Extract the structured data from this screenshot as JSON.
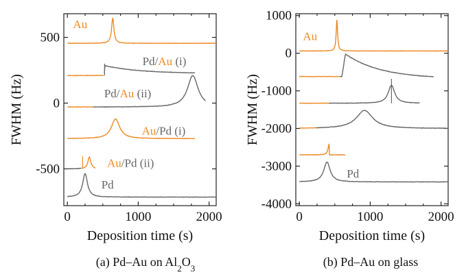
{
  "colors": {
    "orange": "#EE8A22",
    "gray": "#666666",
    "ink": "#111111"
  },
  "panels": [
    {
      "caption_parts": [
        "(a) Pd–Au on Al",
        "2",
        "O",
        "3"
      ],
      "chart_data": {
        "type": "line",
        "xlabel": "Deposition time (s)",
        "ylabel": "FWHM (Hz)",
        "xlim": [
          -50,
          2100
        ],
        "ylim": [
          -780,
          680
        ],
        "xticks": [
          0,
          1000,
          2000
        ],
        "yticks": [
          -500,
          0,
          500
        ],
        "grid": false,
        "series": [
          {
            "label": [
              {
                "text": "Au",
                "c": "orange"
              }
            ],
            "label_at": [
              80,
              570
            ],
            "color": "orange",
            "base": 455,
            "x": [
              0,
              2100
            ],
            "peaks": [
              {
                "c": 640,
                "h": 190,
                "w": 20
              }
            ]
          },
          {
            "label": [
              {
                "text": "Pd/",
                "c": "gray"
              },
              {
                "text": "Au",
                "c": "orange"
              },
              {
                "text": " (i)",
                "c": "gray"
              }
            ],
            "label_at": [
              1060,
              290
            ],
            "color": "gray",
            "base": 210,
            "x": [
              0,
              1800
            ],
            "start_seg": "orange",
            "start_end": 520,
            "onset": 520,
            "jump": 75,
            "decay_to": 225,
            "spike": {
              "x": 525,
              "h": 90
            }
          },
          {
            "label": [
              {
                "text": "Pd/",
                "c": "gray"
              },
              {
                "text": "Au",
                "c": "orange"
              },
              {
                "text": " (ii)",
                "c": "gray"
              }
            ],
            "label_at": [
              520,
              45
            ],
            "color": "gray",
            "base": -30,
            "x": [
              0,
              1950
            ],
            "start_seg": "orange",
            "start_end": 360,
            "peaks": [
              {
                "c": 1770,
                "h": 240,
                "w": 90
              }
            ]
          },
          {
            "label": [
              {
                "text": "Au",
                "c": "orange"
              },
              {
                "text": "/Pd (i)",
                "c": "gray"
              }
            ],
            "label_at": [
              1050,
              -240
            ],
            "color": "orange",
            "base": -270,
            "x": [
              0,
              1800
            ],
            "peaks": [
              {
                "c": 680,
                "h": 150,
                "w": 70
              }
            ]
          },
          {
            "label": [
              {
                "text": "Au",
                "c": "orange"
              },
              {
                "text": "/Pd (ii)",
                "c": "gray"
              }
            ],
            "label_at": [
              560,
              -485
            ],
            "color": "orange",
            "base": -500,
            "x": [
              0,
              400
            ],
            "start_seg": "gray",
            "start_end": 200,
            "spike": {
              "x": 215,
              "h": 95
            },
            "peaks": [
              {
                "c": 310,
                "h": 90,
                "w": 25
              }
            ]
          },
          {
            "label": [
              {
                "text": "Pd",
                "c": "gray"
              }
            ],
            "label_at": [
              480,
              -650
            ],
            "color": "gray",
            "base": -715,
            "x": [
              0,
              2100
            ],
            "peaks": [
              {
                "c": 250,
                "h": 180,
                "w": 40
              }
            ]
          }
        ]
      }
    },
    {
      "caption_parts": [
        "(b) Pd–Au on glass"
      ],
      "chart_data": {
        "type": "line",
        "xlabel": "Deposition time (s)",
        "ylabel": "FWHM (Hz)",
        "xlim": [
          -50,
          2100
        ],
        "ylim": [
          -4050,
          1050
        ],
        "xticks": [
          0,
          1000,
          2000
        ],
        "yticks": [
          -4000,
          -3000,
          -2000,
          -1000,
          0,
          1000
        ],
        "grid": false,
        "series": [
          {
            "label": [
              {
                "text": "Au",
                "c": "orange"
              }
            ],
            "label_at": [
              50,
              350
            ],
            "color": "orange",
            "base": 60,
            "x": [
              0,
              2100
            ],
            "peaks": [
              {
                "c": 530,
                "h": 850,
                "w": 12
              }
            ]
          },
          {
            "label": [],
            "label_at": null,
            "color": "gray",
            "base": -620,
            "x": [
              0,
              1900
            ],
            "start_seg": "orange",
            "start_end": 560,
            "onset": 600,
            "jump": 600,
            "decay_to": -680,
            "rise_width": 50
          },
          {
            "label": [],
            "label_at": null,
            "color": "gray",
            "base": -1330,
            "x": [
              0,
              1700
            ],
            "start_seg": "orange",
            "start_end": 420,
            "peaks": [
              {
                "c": 1300,
                "h": 480,
                "w": 55
              }
            ],
            "spike": {
              "x": 1300,
              "h": 650
            }
          },
          {
            "label": [],
            "label_at": null,
            "color": "gray",
            "base": -2000,
            "x": [
              0,
              2100
            ],
            "start_seg": "orange",
            "start_end": 240,
            "peaks": [
              {
                "c": 920,
                "h": 480,
                "w": 140
              }
            ]
          },
          {
            "label": [],
            "label_at": null,
            "color": "orange",
            "base": -2700,
            "x": [
              0,
              650
            ],
            "peaks": [
              {
                "c": 420,
                "h": 290,
                "w": 18
              }
            ],
            "drop_after": 425
          },
          {
            "label": [
              {
                "text": "Pd",
                "c": "gray"
              }
            ],
            "label_at": [
              670,
              -3300
            ],
            "color": "gray",
            "base": -3420,
            "x": [
              0,
              2100
            ],
            "peaks": [
              {
                "c": 390,
                "h": 530,
                "w": 55
              }
            ]
          }
        ]
      }
    }
  ]
}
